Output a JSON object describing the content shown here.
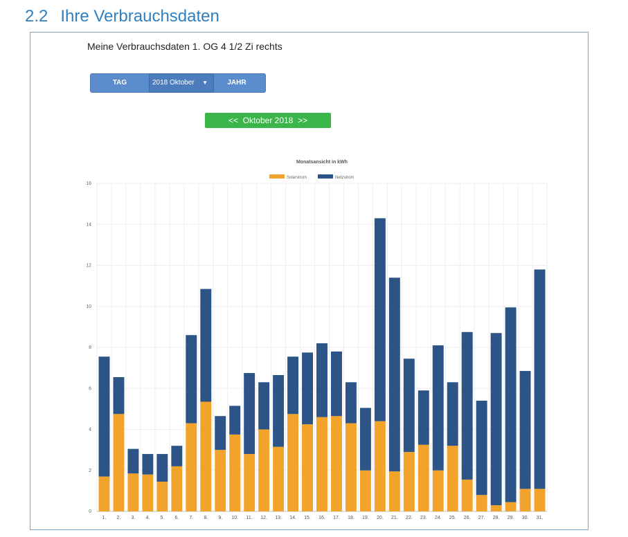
{
  "section": {
    "number": "2.2",
    "title": "Ihre Verbrauchsdaten"
  },
  "page_title": "Meine Verbrauchsdaten 1. OG 4 1/2 Zi rechts",
  "toolbar": {
    "day_label": "TAG",
    "month_value": "2018 Oktober",
    "year_label": "JAHR"
  },
  "month_nav": {
    "prev": "<<",
    "label": "Oktober 2018",
    "next": ">>"
  },
  "colors": {
    "solar": "#f2a32c",
    "grid": "#2c5486",
    "grid_line": "#eeeeee"
  },
  "chart_data": {
    "type": "bar",
    "stacked": true,
    "title": "Monatsansicht in kWh",
    "legend_position": "top-center",
    "categories": [
      "1.",
      "2.",
      "3.",
      "4.",
      "5.",
      "6.",
      "7.",
      "8.",
      "9.",
      "10.",
      "11.",
      "12.",
      "13.",
      "14.",
      "15.",
      "16.",
      "17.",
      "18.",
      "19.",
      "20.",
      "21.",
      "22.",
      "23.",
      "24.",
      "25.",
      "26.",
      "27.",
      "28.",
      "29.",
      "30.",
      "31."
    ],
    "series": [
      {
        "name": "Solarstrom",
        "values": [
          1.7,
          4.75,
          1.85,
          1.8,
          1.45,
          2.2,
          4.3,
          5.35,
          3.0,
          3.75,
          2.8,
          4.0,
          3.15,
          4.75,
          4.25,
          4.6,
          4.65,
          4.3,
          2.0,
          4.4,
          1.95,
          2.9,
          3.25,
          2.0,
          3.2,
          1.55,
          0.8,
          0.3,
          0.45,
          1.1,
          1.1
        ]
      },
      {
        "name": "Netzstrom",
        "values": [
          5.85,
          1.8,
          1.2,
          1.0,
          1.35,
          1.0,
          4.3,
          5.5,
          1.65,
          1.4,
          3.95,
          2.3,
          3.5,
          2.8,
          3.5,
          3.6,
          3.15,
          2.0,
          3.05,
          9.9,
          9.45,
          4.55,
          2.65,
          6.1,
          3.1,
          7.2,
          4.6,
          8.4,
          9.5,
          5.75,
          10.7
        ]
      }
    ],
    "y_ticks": [
      "0",
      "2",
      "4",
      "6",
      "8",
      "10",
      "12",
      "14",
      "16"
    ],
    "ylim": [
      0,
      16
    ],
    "grid": true
  }
}
